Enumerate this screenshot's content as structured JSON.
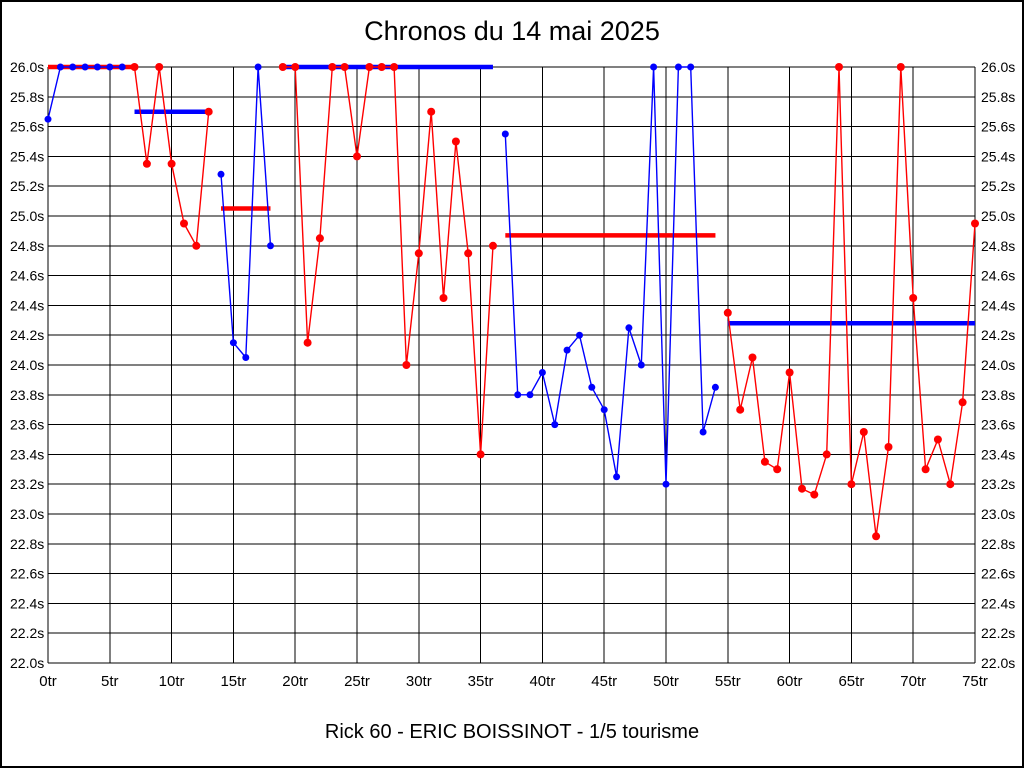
{
  "window": {
    "title": "Chronos du 14 mai 2025",
    "subtitle": "Rick 60 - ERIC BOISSINOT - 1/5 tourisme"
  },
  "chart_data": {
    "type": "line",
    "title": "Chronos du 14 mai 2025",
    "subtitle": "Rick 60 - ERIC BOISSINOT - 1/5 tourisme",
    "x_unit": "tr",
    "y_unit": "s",
    "xlim": [
      0,
      75
    ],
    "ylim": [
      22.0,
      26.0
    ],
    "x_tick_step": 5,
    "y_tick_step": 0.2,
    "x_tick_labels": [
      "0tr",
      "5tr",
      "10tr",
      "15tr",
      "20tr",
      "25tr",
      "30tr",
      "35tr",
      "40tr",
      "45tr",
      "50tr",
      "55tr",
      "60tr",
      "65tr",
      "70tr",
      "75tr"
    ],
    "y_tick_labels": [
      "26.0s",
      "25.8s",
      "25.6s",
      "25.4s",
      "25.2s",
      "25.0s",
      "24.8s",
      "24.6s",
      "24.4s",
      "24.2s",
      "24.0s",
      "23.8s",
      "23.6s",
      "23.4s",
      "23.2s",
      "23.0s",
      "22.8s",
      "22.6s",
      "22.4s",
      "22.2s",
      "22.0s"
    ],
    "grid": true,
    "clip_max": 26.0,
    "legend": "none",
    "colors": {
      "red": "#ff0000",
      "blue": "#0000ff",
      "grid": "#000000",
      "text": "#000000",
      "background": "#ffffff"
    },
    "series": [
      {
        "name": "blue-stint-1",
        "color": "blue",
        "points": [
          [
            0,
            25.65
          ],
          [
            1,
            26.0
          ],
          [
            2,
            26.0
          ],
          [
            3,
            26.0
          ],
          [
            4,
            26.0
          ],
          [
            5,
            26.0
          ],
          [
            6,
            26.0
          ]
        ]
      },
      {
        "name": "red-stint-1",
        "color": "red",
        "points": [
          [
            7,
            26.0
          ],
          [
            8,
            25.35
          ],
          [
            9,
            26.0
          ],
          [
            10,
            25.35
          ],
          [
            11,
            24.95
          ],
          [
            12,
            24.8
          ],
          [
            13,
            25.7
          ]
        ]
      },
      {
        "name": "blue-stint-2",
        "color": "blue",
        "points": [
          [
            14,
            25.28
          ],
          [
            15,
            24.15
          ],
          [
            16,
            24.05
          ],
          [
            17,
            26.0
          ],
          [
            18,
            24.8
          ]
        ]
      },
      {
        "name": "red-stint-2",
        "color": "red",
        "points": [
          [
            19,
            26.0
          ],
          [
            20,
            26.0
          ],
          [
            21,
            24.15
          ],
          [
            22,
            24.85
          ],
          [
            23,
            26.0
          ],
          [
            24,
            26.0
          ],
          [
            25,
            25.4
          ],
          [
            26,
            26.0
          ],
          [
            27,
            26.0
          ],
          [
            28,
            26.0
          ],
          [
            29,
            24.0
          ],
          [
            30,
            24.75
          ],
          [
            31,
            25.7
          ],
          [
            32,
            24.45
          ],
          [
            33,
            25.5
          ],
          [
            34,
            24.75
          ],
          [
            35,
            23.4
          ],
          [
            36,
            24.8
          ]
        ]
      },
      {
        "name": "blue-stint-3",
        "color": "blue",
        "points": [
          [
            37,
            25.55
          ],
          [
            38,
            23.8
          ],
          [
            39,
            23.8
          ],
          [
            40,
            23.95
          ],
          [
            41,
            23.6
          ],
          [
            42,
            24.1
          ],
          [
            43,
            24.2
          ],
          [
            44,
            23.85
          ],
          [
            45,
            23.7
          ],
          [
            46,
            23.25
          ],
          [
            47,
            24.25
          ],
          [
            48,
            24.0
          ],
          [
            49,
            26.0
          ],
          [
            50,
            23.2
          ],
          [
            51,
            26.0
          ],
          [
            52,
            26.0
          ],
          [
            53,
            23.55
          ],
          [
            54,
            23.85
          ]
        ]
      },
      {
        "name": "red-stint-3",
        "color": "red",
        "points": [
          [
            55,
            24.35
          ],
          [
            56,
            23.7
          ],
          [
            57,
            24.05
          ],
          [
            58,
            23.35
          ],
          [
            59,
            23.3
          ],
          [
            60,
            23.95
          ],
          [
            61,
            23.17
          ],
          [
            62,
            23.13
          ],
          [
            63,
            23.4
          ],
          [
            64,
            26.0
          ],
          [
            65,
            23.2
          ],
          [
            66,
            23.55
          ],
          [
            67,
            22.85
          ],
          [
            68,
            23.45
          ],
          [
            69,
            26.0
          ],
          [
            70,
            24.45
          ],
          [
            71,
            23.3
          ],
          [
            72,
            23.5
          ],
          [
            73,
            23.2
          ],
          [
            74,
            23.75
          ],
          [
            75,
            24.95
          ]
        ]
      }
    ],
    "average_segments": [
      {
        "color": "red",
        "from_lap": 0,
        "to_lap": 7,
        "value": 26.0
      },
      {
        "color": "blue",
        "from_lap": 7,
        "to_lap": 13,
        "value": 25.7
      },
      {
        "color": "red",
        "from_lap": 14,
        "to_lap": 18,
        "value": 25.05
      },
      {
        "color": "blue",
        "from_lap": 19,
        "to_lap": 36,
        "value": 26.0
      },
      {
        "color": "red",
        "from_lap": 37,
        "to_lap": 54,
        "value": 24.87
      },
      {
        "color": "blue",
        "from_lap": 55,
        "to_lap": 75,
        "value": 24.28
      }
    ]
  }
}
